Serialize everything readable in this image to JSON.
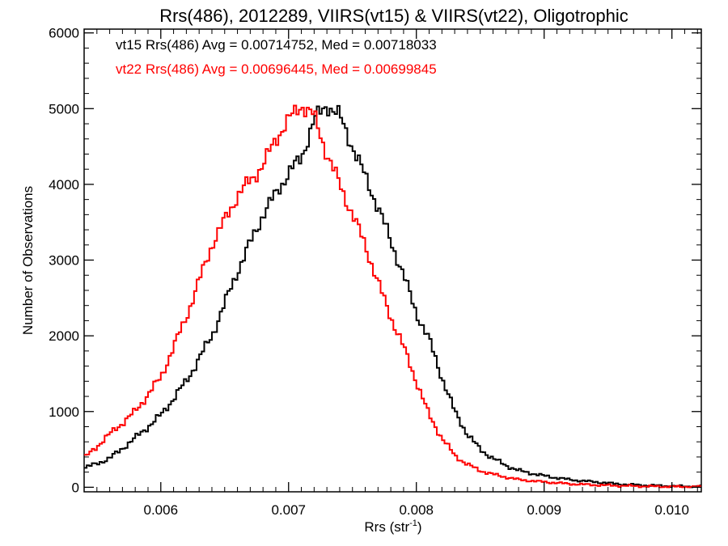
{
  "chart_data": {
    "type": "line",
    "title": "Rrs(486), 2012289, VIIRS(vt15) & VIIRS(vt22), Oligotrophic",
    "xlabel": "Rrs (str",
    "xlabel_sup": "-1",
    "xlabel_close": ")",
    "ylabel": "Number of Observations",
    "xlim": [
      0.0054,
      0.01023
    ],
    "ylim": [
      -60,
      6050
    ],
    "xticks": [
      0.006,
      0.007,
      0.008,
      0.009,
      0.01
    ],
    "xtick_labels": [
      "0.006",
      "0.007",
      "0.008",
      "0.009",
      "0.010"
    ],
    "yticks": [
      0,
      1000,
      2000,
      3000,
      4000,
      5000,
      6000
    ],
    "ytick_labels": [
      "0",
      "1000",
      "2000",
      "3000",
      "4000",
      "5000",
      "6000"
    ],
    "annotations": [
      {
        "text": "vt15 Rrs(486) Avg = 0.00714752, Med = 0.00718033",
        "color": "#000000"
      },
      {
        "text": "vt22 Rrs(486) Avg = 0.00696445, Med = 0.00699845",
        "color": "#ff0000"
      }
    ],
    "grid": false,
    "series": [
      {
        "color": "#000000",
        "x": [
          0.0054,
          0.0056,
          0.0058,
          0.006,
          0.0062,
          0.0064,
          0.0066,
          0.0068,
          0.007,
          0.0071,
          0.0072,
          0.0073,
          0.0074,
          0.0075,
          0.0076,
          0.0077,
          0.0078,
          0.0079,
          0.008,
          0.0081,
          0.0082,
          0.0083,
          0.0084,
          0.0085,
          0.0086,
          0.0087,
          0.0088,
          0.009,
          0.0092,
          0.0094,
          0.0096,
          0.0098,
          0.01,
          0.01023
        ],
        "y": [
          250,
          380,
          650,
          950,
          1400,
          2000,
          2850,
          3600,
          4150,
          4350,
          4850,
          5050,
          4900,
          4500,
          4100,
          3700,
          3250,
          2800,
          2300,
          1950,
          1450,
          1000,
          700,
          500,
          380,
          290,
          220,
          150,
          100,
          70,
          40,
          25,
          15,
          10
        ]
      },
      {
        "color": "#ff0000",
        "x": [
          0.0054,
          0.0056,
          0.0058,
          0.006,
          0.0062,
          0.0064,
          0.0066,
          0.0067,
          0.0068,
          0.0069,
          0.007,
          0.0071,
          0.0072,
          0.0073,
          0.0074,
          0.0075,
          0.0076,
          0.0077,
          0.0078,
          0.0079,
          0.008,
          0.0081,
          0.0082,
          0.0083,
          0.0084,
          0.0085,
          0.0086,
          0.0088,
          0.009,
          0.0092,
          0.0094,
          0.0096,
          0.0098,
          0.01,
          0.01023
        ],
        "y": [
          380,
          700,
          1000,
          1450,
          2250,
          3200,
          3850,
          4050,
          4250,
          4600,
          4850,
          5050,
          4900,
          4400,
          4000,
          3600,
          3200,
          2700,
          2250,
          1850,
          1400,
          950,
          650,
          420,
          300,
          220,
          170,
          100,
          70,
          45,
          30,
          20,
          12,
          8,
          5
        ]
      }
    ]
  }
}
